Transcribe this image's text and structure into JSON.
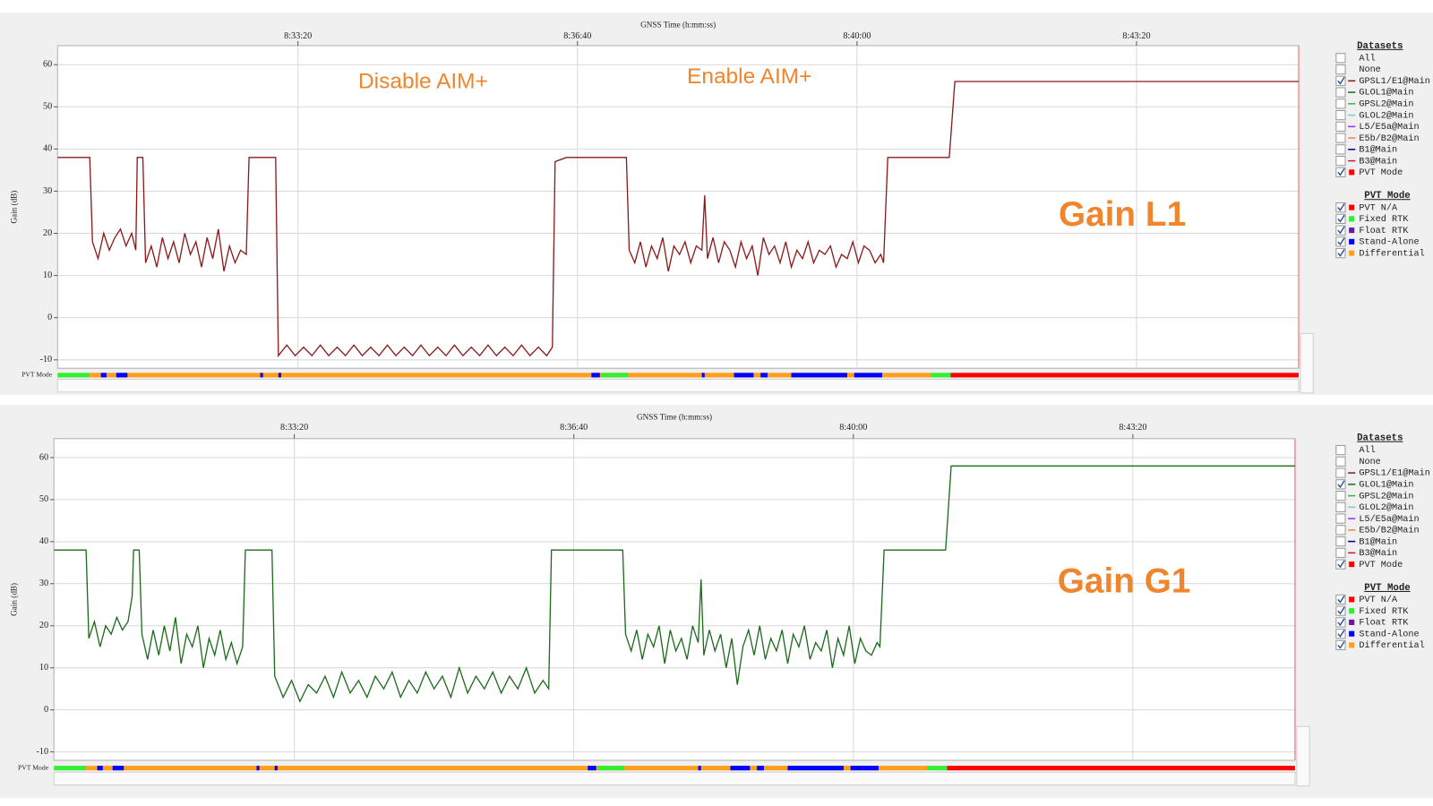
{
  "chart_data": [
    {
      "type": "line",
      "x_label": "GNSS Time (h:mm:ss)",
      "y_label": "Gain (dB)",
      "bar_label": "PVT Mode",
      "annotations": [
        "Disable AIM+",
        "Enable AIM+",
        "Gain L1"
      ],
      "x": [
        "8:30:28",
        "8:30:51",
        "8:30:53",
        "8:30:57",
        "8:31:01",
        "8:31:05",
        "8:31:09",
        "8:31:13",
        "8:31:17",
        "8:31:21",
        "8:31:24",
        "8:31:25",
        "8:31:29",
        "8:31:31",
        "8:31:35",
        "8:31:39",
        "8:31:43",
        "8:31:47",
        "8:31:51",
        "8:31:55",
        "8:31:59",
        "8:32:03",
        "8:32:07",
        "8:32:11",
        "8:32:15",
        "8:32:19",
        "8:32:23",
        "8:32:27",
        "8:32:31",
        "8:32:35",
        "8:32:39",
        "8:32:43",
        "8:32:45",
        "8:33:04",
        "8:33:06",
        "8:33:12",
        "8:33:18",
        "8:33:24",
        "8:33:30",
        "8:33:36",
        "8:33:42",
        "8:33:48",
        "8:33:54",
        "8:34:00",
        "8:34:06",
        "8:34:12",
        "8:34:18",
        "8:34:24",
        "8:34:30",
        "8:34:36",
        "8:34:42",
        "8:34:48",
        "8:34:54",
        "8:35:00",
        "8:35:06",
        "8:35:12",
        "8:35:18",
        "8:35:24",
        "8:35:30",
        "8:35:36",
        "8:35:42",
        "8:35:48",
        "8:35:54",
        "8:36:00",
        "8:36:06",
        "8:36:12",
        "8:36:18",
        "8:36:22",
        "8:36:24",
        "8:36:32",
        "8:37:15",
        "8:37:17",
        "8:37:21",
        "8:37:25",
        "8:37:29",
        "8:37:33",
        "8:37:37",
        "8:37:41",
        "8:37:45",
        "8:37:49",
        "8:37:53",
        "8:37:57",
        "8:38:01",
        "8:38:05",
        "8:38:09",
        "8:38:11",
        "8:38:13",
        "8:38:17",
        "8:38:21",
        "8:38:25",
        "8:38:29",
        "8:38:33",
        "8:38:37",
        "8:38:41",
        "8:38:45",
        "8:38:49",
        "8:38:53",
        "8:38:57",
        "8:39:01",
        "8:39:05",
        "8:39:09",
        "8:39:13",
        "8:39:17",
        "8:39:21",
        "8:39:25",
        "8:39:29",
        "8:39:33",
        "8:39:37",
        "8:39:41",
        "8:39:45",
        "8:39:49",
        "8:39:53",
        "8:39:57",
        "8:40:01",
        "8:40:05",
        "8:40:09",
        "8:40:13",
        "8:40:17",
        "8:40:19",
        "8:40:22",
        "8:41:06",
        "8:41:10",
        "8:45:16"
      ],
      "series": [
        {
          "name": "GPSL1/E1@Main",
          "color": "#8b1a1a",
          "values": [
            38,
            38,
            18,
            14,
            20,
            16,
            19,
            21,
            17,
            20,
            16,
            38,
            38,
            13,
            17,
            12,
            19,
            14,
            18,
            13,
            20,
            15,
            18,
            12,
            19,
            14,
            21,
            11,
            17,
            13,
            16,
            15,
            38,
            38,
            -9,
            -6.5,
            -9,
            -7,
            -9,
            -6.5,
            -9,
            -7,
            -9,
            -6.5,
            -9,
            -7,
            -9,
            -6.5,
            -9,
            -7,
            -9,
            -6.5,
            -9,
            -7,
            -9,
            -6.5,
            -9,
            -7,
            -9,
            -6.5,
            -9,
            -7,
            -9,
            -6.5,
            -9,
            -7,
            -9,
            -7,
            37,
            38,
            38,
            16,
            13,
            18,
            12,
            17,
            14,
            19,
            11,
            17,
            15,
            18,
            13,
            17,
            16,
            29,
            14,
            19,
            13,
            18,
            16,
            12,
            18,
            14,
            17,
            10,
            19,
            15,
            17,
            13,
            18,
            12,
            16,
            14,
            18,
            13,
            16,
            15,
            17,
            12,
            15,
            14,
            18,
            13,
            17,
            16,
            13,
            15,
            13,
            38,
            38,
            56,
            56
          ]
        }
      ],
      "xlim": [
        "8:30:28",
        "8:45:16"
      ],
      "xticks": [
        "8:33:20",
        "8:36:40",
        "8:40:00",
        "8:43:20"
      ],
      "ylim": [
        -12,
        64.5
      ],
      "yticks": [
        -10,
        0,
        10,
        20,
        30,
        40,
        50,
        60
      ],
      "grid": true,
      "datasets_title": "Datasets",
      "datasets": [
        {
          "name": "All",
          "checked": false
        },
        {
          "name": "None",
          "checked": false
        },
        {
          "name": "GPSL1/E1@Main",
          "color": "#8b1a1a",
          "checked": true
        },
        {
          "name": "GLOL1@Main",
          "color": "#1e6b1e",
          "checked": false
        },
        {
          "name": "GPSL2@Main",
          "color": "#3cb043",
          "checked": false
        },
        {
          "name": "GLOL2@Main",
          "color": "#7fc9c9",
          "checked": false
        },
        {
          "name": "L5/E5a@Main",
          "color": "#9b30ff",
          "checked": false
        },
        {
          "name": "E5b/B2@Main",
          "color": "#ff7f50",
          "checked": false
        },
        {
          "name": "B1@Main",
          "color": "#00008b",
          "checked": false
        },
        {
          "name": "B3@Main",
          "color": "#cc2020",
          "checked": false
        },
        {
          "name": "PVT Mode",
          "color": "#ff0000",
          "checked": true,
          "marker": "square"
        }
      ],
      "pvt_title": "PVT Mode",
      "pvt_modes": [
        {
          "name": "PVT N/A",
          "color": "#ff0000",
          "checked": true
        },
        {
          "name": "Fixed RTK",
          "color": "#33ee33",
          "checked": true
        },
        {
          "name": "Float RTK",
          "color": "#6a1b9a",
          "checked": true
        },
        {
          "name": "Stand-Alone",
          "color": "#0000ff",
          "checked": true
        },
        {
          "name": "Differential",
          "color": "#ff9f1c",
          "checked": true
        }
      ],
      "pvt_segments": [
        {
          "mode": "Fixed RTK",
          "start": "8:30:28",
          "end": "8:30:51"
        },
        {
          "mode": "Differential",
          "start": "8:30:51",
          "end": "8:40:53"
        },
        {
          "mode": "Stand-Alone",
          "start": "8:30:59",
          "end": "8:31:03"
        },
        {
          "mode": "Stand-Alone",
          "start": "8:31:10",
          "end": "8:31:18"
        },
        {
          "mode": "Stand-Alone",
          "start": "8:32:53",
          "end": "8:32:55"
        },
        {
          "mode": "Stand-Alone",
          "start": "8:33:06",
          "end": "8:33:08"
        },
        {
          "mode": "Stand-Alone",
          "start": "8:36:50",
          "end": "8:36:56"
        },
        {
          "mode": "Fixed RTK",
          "start": "8:36:57",
          "end": "8:37:16"
        },
        {
          "mode": "Stand-Alone",
          "start": "8:38:09",
          "end": "8:38:11"
        },
        {
          "mode": "Stand-Alone",
          "start": "8:38:32",
          "end": "8:38:46"
        },
        {
          "mode": "Stand-Alone",
          "start": "8:38:51",
          "end": "8:38:56"
        },
        {
          "mode": "Stand-Alone",
          "start": "8:39:13",
          "end": "8:39:53"
        },
        {
          "mode": "Stand-Alone",
          "start": "8:39:58",
          "end": "8:40:18"
        },
        {
          "mode": "Fixed RTK",
          "start": "8:40:53",
          "end": "8:41:07"
        },
        {
          "mode": "PVT N/A",
          "start": "8:41:07",
          "end": "8:45:16"
        }
      ]
    },
    {
      "type": "line",
      "x_label": "GNSS Time (h:mm:ss)",
      "y_label": "Gain (dB)",
      "bar_label": "PVT Mode",
      "annotations": [
        "Gain G1"
      ],
      "x": [
        "8:30:28",
        "8:30:51",
        "8:30:53",
        "8:30:57",
        "8:31:01",
        "8:31:05",
        "8:31:09",
        "8:31:13",
        "8:31:17",
        "8:31:21",
        "8:31:24",
        "8:31:25",
        "8:31:29",
        "8:31:31",
        "8:31:35",
        "8:31:39",
        "8:31:43",
        "8:31:47",
        "8:31:51",
        "8:31:55",
        "8:31:59",
        "8:32:03",
        "8:32:07",
        "8:32:11",
        "8:32:15",
        "8:32:19",
        "8:32:23",
        "8:32:27",
        "8:32:31",
        "8:32:35",
        "8:32:39",
        "8:32:43",
        "8:32:45",
        "8:33:04",
        "8:33:06",
        "8:33:12",
        "8:33:18",
        "8:33:24",
        "8:33:30",
        "8:33:36",
        "8:33:42",
        "8:33:48",
        "8:33:54",
        "8:34:00",
        "8:34:06",
        "8:34:12",
        "8:34:18",
        "8:34:24",
        "8:34:30",
        "8:34:36",
        "8:34:42",
        "8:34:48",
        "8:34:54",
        "8:35:00",
        "8:35:06",
        "8:35:12",
        "8:35:18",
        "8:35:24",
        "8:35:30",
        "8:35:36",
        "8:35:42",
        "8:35:48",
        "8:35:54",
        "8:36:00",
        "8:36:06",
        "8:36:12",
        "8:36:18",
        "8:36:22",
        "8:36:24",
        "8:36:32",
        "8:37:15",
        "8:37:17",
        "8:37:21",
        "8:37:25",
        "8:37:29",
        "8:37:33",
        "8:37:37",
        "8:37:41",
        "8:37:45",
        "8:37:49",
        "8:37:53",
        "8:37:57",
        "8:38:01",
        "8:38:05",
        "8:38:09",
        "8:38:11",
        "8:38:13",
        "8:38:17",
        "8:38:21",
        "8:38:25",
        "8:38:29",
        "8:38:33",
        "8:38:37",
        "8:38:41",
        "8:38:45",
        "8:38:49",
        "8:38:53",
        "8:38:57",
        "8:39:01",
        "8:39:05",
        "8:39:09",
        "8:39:13",
        "8:39:17",
        "8:39:21",
        "8:39:25",
        "8:39:29",
        "8:39:33",
        "8:39:37",
        "8:39:41",
        "8:39:45",
        "8:39:49",
        "8:39:53",
        "8:39:57",
        "8:40:01",
        "8:40:05",
        "8:40:09",
        "8:40:13",
        "8:40:17",
        "8:40:19",
        "8:40:22",
        "8:41:06",
        "8:41:10",
        "8:45:16"
      ],
      "series": [
        {
          "name": "GLOL1@Main",
          "color": "#1e6b1e",
          "values": [
            38,
            38,
            17,
            21,
            15,
            20,
            18,
            22,
            19,
            21,
            27,
            38,
            38,
            18,
            12,
            19,
            13,
            20,
            14,
            22,
            11,
            18,
            15,
            20,
            10,
            17,
            13,
            19,
            12,
            16,
            11,
            15,
            38,
            38,
            8,
            3,
            7,
            2,
            6,
            4,
            8,
            3,
            9,
            4,
            7,
            3,
            8,
            5,
            9,
            3,
            7,
            4,
            9,
            5,
            8,
            3,
            10,
            4,
            8,
            5,
            9,
            4,
            8,
            5,
            10,
            4,
            7,
            5,
            38,
            38,
            38,
            18,
            14,
            19,
            12,
            18,
            15,
            20,
            11,
            19,
            14,
            17,
            12,
            20,
            16,
            31,
            13,
            19,
            14,
            18,
            10,
            17,
            6,
            15,
            19,
            13,
            20,
            12,
            17,
            14,
            19,
            11,
            18,
            15,
            20,
            12,
            16,
            14,
            19,
            10,
            17,
            13,
            20,
            11,
            17,
            14,
            13,
            16,
            15,
            38,
            38,
            58,
            58
          ]
        }
      ],
      "xlim": [
        "8:30:28",
        "8:45:16"
      ],
      "xticks": [
        "8:33:20",
        "8:36:40",
        "8:40:00",
        "8:43:20"
      ],
      "ylim": [
        -12,
        64.5
      ],
      "yticks": [
        -10,
        0,
        10,
        20,
        30,
        40,
        50,
        60
      ],
      "grid": true,
      "datasets_title": "Datasets",
      "datasets": [
        {
          "name": "All",
          "checked": false
        },
        {
          "name": "None",
          "checked": false
        },
        {
          "name": "GPSL1/E1@Main",
          "color": "#8b1a1a",
          "checked": false
        },
        {
          "name": "GLOL1@Main",
          "color": "#1e6b1e",
          "checked": true
        },
        {
          "name": "GPSL2@Main",
          "color": "#3cb043",
          "checked": false
        },
        {
          "name": "GLOL2@Main",
          "color": "#7fc9c9",
          "checked": false
        },
        {
          "name": "L5/E5a@Main",
          "color": "#9b30ff",
          "checked": false
        },
        {
          "name": "E5b/B2@Main",
          "color": "#ff7f50",
          "checked": false
        },
        {
          "name": "B1@Main",
          "color": "#00008b",
          "checked": false
        },
        {
          "name": "B3@Main",
          "color": "#cc2020",
          "checked": false
        },
        {
          "name": "PVT Mode",
          "color": "#ff0000",
          "checked": true,
          "marker": "square"
        }
      ],
      "pvt_title": "PVT Mode",
      "pvt_modes": [
        {
          "name": "PVT N/A",
          "color": "#ff0000",
          "checked": true
        },
        {
          "name": "Fixed RTK",
          "color": "#33ee33",
          "checked": true
        },
        {
          "name": "Float RTK",
          "color": "#6a1b9a",
          "checked": true
        },
        {
          "name": "Stand-Alone",
          "color": "#0000ff",
          "checked": true
        },
        {
          "name": "Differential",
          "color": "#ff9f1c",
          "checked": true
        }
      ],
      "pvt_segments": [
        {
          "mode": "Fixed RTK",
          "start": "8:30:28",
          "end": "8:30:51"
        },
        {
          "mode": "Differential",
          "start": "8:30:51",
          "end": "8:40:53"
        },
        {
          "mode": "Stand-Alone",
          "start": "8:30:59",
          "end": "8:31:03"
        },
        {
          "mode": "Stand-Alone",
          "start": "8:31:10",
          "end": "8:31:18"
        },
        {
          "mode": "Stand-Alone",
          "start": "8:32:53",
          "end": "8:32:55"
        },
        {
          "mode": "Stand-Alone",
          "start": "8:33:06",
          "end": "8:33:08"
        },
        {
          "mode": "Stand-Alone",
          "start": "8:36:50",
          "end": "8:36:56"
        },
        {
          "mode": "Fixed RTK",
          "start": "8:36:57",
          "end": "8:37:16"
        },
        {
          "mode": "Stand-Alone",
          "start": "8:38:09",
          "end": "8:38:11"
        },
        {
          "mode": "Stand-Alone",
          "start": "8:38:32",
          "end": "8:38:46"
        },
        {
          "mode": "Stand-Alone",
          "start": "8:38:51",
          "end": "8:38:56"
        },
        {
          "mode": "Stand-Alone",
          "start": "8:39:13",
          "end": "8:39:53"
        },
        {
          "mode": "Stand-Alone",
          "start": "8:39:58",
          "end": "8:40:18"
        },
        {
          "mode": "Fixed RTK",
          "start": "8:40:53",
          "end": "8:41:07"
        },
        {
          "mode": "PVT N/A",
          "start": "8:41:07",
          "end": "8:45:16"
        }
      ]
    }
  ]
}
